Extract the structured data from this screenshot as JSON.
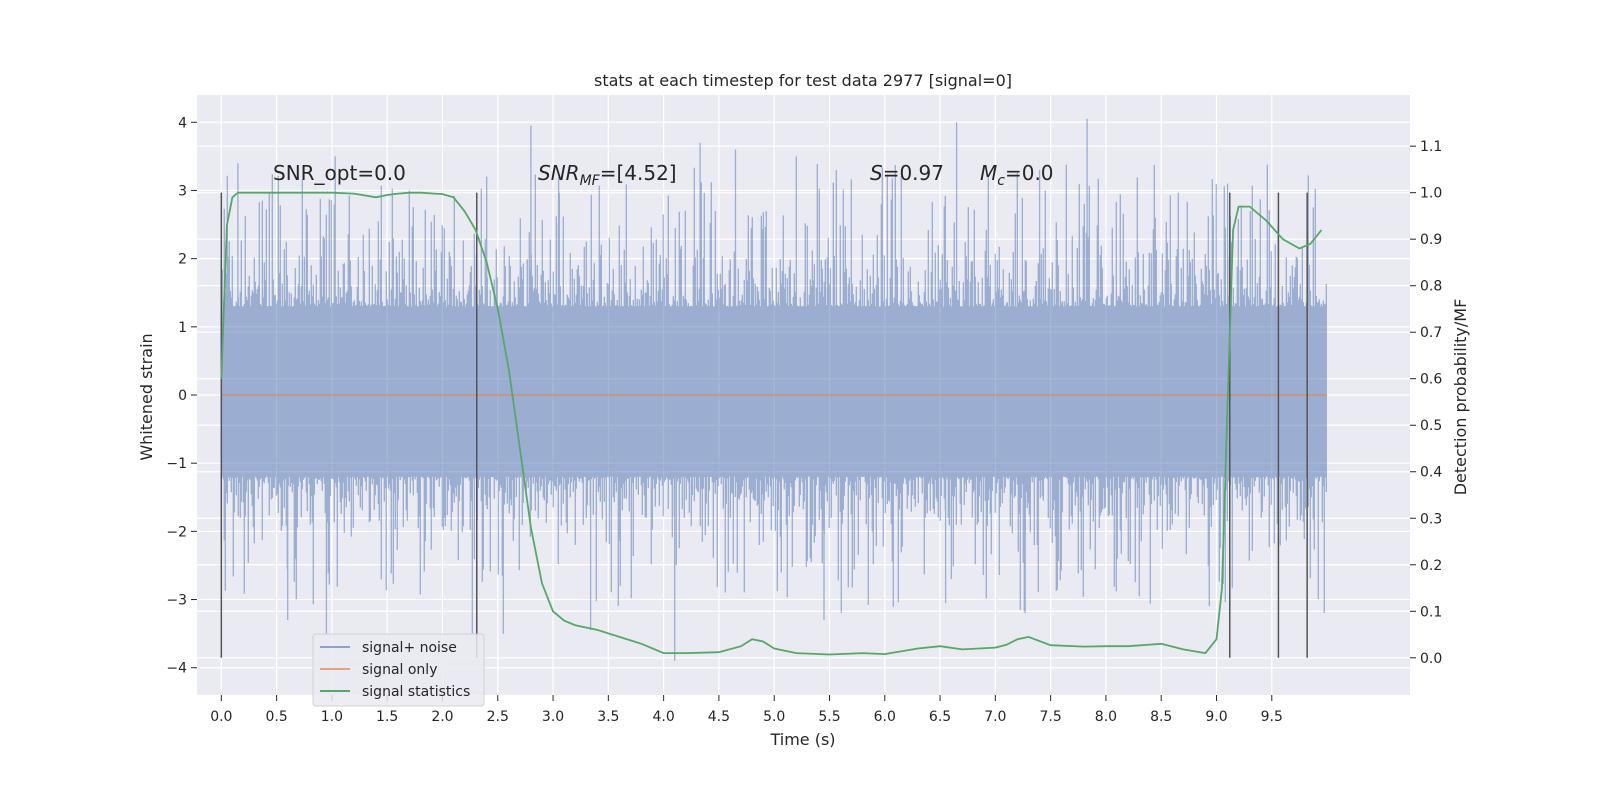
{
  "chart_data": {
    "type": "line",
    "title": "stats at each timestep for test data 2977 [signal=0]",
    "xlabel": "Time (s)",
    "ylabel": "Whitened strain",
    "y2label": "Detection probability/MF",
    "xlim": [
      -0.22,
      10.75
    ],
    "ylim": [
      -4.4,
      4.4
    ],
    "y2lim": [
      -0.08,
      1.21
    ],
    "x_ticks": [
      "0.0",
      "0.5",
      "1.0",
      "1.5",
      "2.0",
      "2.5",
      "3.0",
      "3.5",
      "4.0",
      "4.5",
      "5.0",
      "5.5",
      "6.0",
      "6.5",
      "7.0",
      "7.5",
      "8.0",
      "8.5",
      "9.0",
      "9.5"
    ],
    "y_ticks": [
      "4",
      "3",
      "2",
      "1",
      "0",
      "−1",
      "−2",
      "−3",
      "−4"
    ],
    "y2_ticks": [
      "0.0",
      "0.1",
      "0.2",
      "0.3",
      "0.4",
      "0.5",
      "0.6",
      "0.7",
      "0.8",
      "0.9",
      "1.0",
      "1.1"
    ],
    "grid": true,
    "legend_placement": "lower-left",
    "series": [
      {
        "name": "signal+ noise",
        "color": "#4c72b0",
        "opacity": 0.5,
        "axis": "left",
        "x_range": [
          0.0,
          10.0
        ],
        "envelope_typical": 1.3,
        "peak_values": [
          {
            "x": 0.15,
            "y": 3.4
          },
          {
            "x": 1.03,
            "y": 3.5
          },
          {
            "x": 2.4,
            "y": 3.2
          },
          {
            "x": 2.8,
            "y": 3.95
          },
          {
            "x": 4.33,
            "y": 3.7
          },
          {
            "x": 4.65,
            "y": 3.6
          },
          {
            "x": 6.65,
            "y": 4.0
          },
          {
            "x": 7.83,
            "y": 4.05
          },
          {
            "x": 1.7,
            "y": 3.0
          },
          {
            "x": 3.05,
            "y": 3.2
          },
          {
            "x": 5.2,
            "y": 3.5
          },
          {
            "x": 7.4,
            "y": 3.3
          },
          {
            "x": 9.1,
            "y": 3.1
          }
        ],
        "trough_values": [
          {
            "x": 0.95,
            "y": -3.5
          },
          {
            "x": 2.27,
            "y": -3.5
          },
          {
            "x": 2.55,
            "y": -3.5
          },
          {
            "x": 3.34,
            "y": -3.45
          },
          {
            "x": 4.1,
            "y": -3.9
          },
          {
            "x": 5.45,
            "y": -3.3
          },
          {
            "x": 6.55,
            "y": -3.05
          },
          {
            "x": 7.27,
            "y": -3.2
          },
          {
            "x": 0.6,
            "y": -3.3
          }
        ]
      },
      {
        "name": "signal only",
        "color": "#dd8452",
        "axis": "left",
        "x": [
          0.0,
          10.0
        ],
        "y": [
          0.0,
          0.0
        ]
      },
      {
        "name": "signal statistics",
        "color": "#55a868",
        "axis": "right",
        "x": [
          0.0,
          0.05,
          0.1,
          0.15,
          0.2,
          0.3,
          0.5,
          0.8,
          1.0,
          1.2,
          1.4,
          1.5,
          1.6,
          1.7,
          1.8,
          2.0,
          2.1,
          2.2,
          2.3,
          2.4,
          2.5,
          2.6,
          2.7,
          2.8,
          2.9,
          3.0,
          3.1,
          3.2,
          3.4,
          3.6,
          3.8,
          4.0,
          4.2,
          4.5,
          4.7,
          4.8,
          4.9,
          5.0,
          5.2,
          5.5,
          5.8,
          6.0,
          6.3,
          6.5,
          6.7,
          7.0,
          7.1,
          7.2,
          7.3,
          7.5,
          7.8,
          8.0,
          8.2,
          8.5,
          8.7,
          8.9,
          9.0,
          9.05,
          9.1,
          9.15,
          9.2,
          9.3,
          9.45,
          9.6,
          9.75,
          9.85,
          9.95
        ],
        "y": [
          0.6,
          0.93,
          0.99,
          1.0,
          1.0,
          1.0,
          1.0,
          1.0,
          1.0,
          0.998,
          0.99,
          0.995,
          0.998,
          1.0,
          1.0,
          0.997,
          0.99,
          0.96,
          0.92,
          0.85,
          0.75,
          0.62,
          0.45,
          0.28,
          0.16,
          0.1,
          0.08,
          0.07,
          0.06,
          0.045,
          0.03,
          0.01,
          0.01,
          0.012,
          0.025,
          0.04,
          0.035,
          0.02,
          0.01,
          0.007,
          0.01,
          0.008,
          0.02,
          0.025,
          0.018,
          0.022,
          0.028,
          0.04,
          0.045,
          0.027,
          0.024,
          0.025,
          0.025,
          0.03,
          0.018,
          0.01,
          0.04,
          0.15,
          0.55,
          0.92,
          0.97,
          0.97,
          0.94,
          0.9,
          0.88,
          0.89,
          0.92
        ]
      }
    ],
    "vertical_markers": [
      0.0,
      2.31,
      9.12,
      9.56,
      9.82
    ],
    "annotations": {
      "snr_opt": "SNR_opt=0.0",
      "snr_mf_prefix": "SNR",
      "snr_mf_sub": "MF",
      "snr_mf_value": "=[4.52]",
      "s_symbol": "S",
      "s_value": "=0.97",
      "mc_symbol": "M",
      "mc_sub": "c",
      "mc_value": "=0.0"
    }
  }
}
